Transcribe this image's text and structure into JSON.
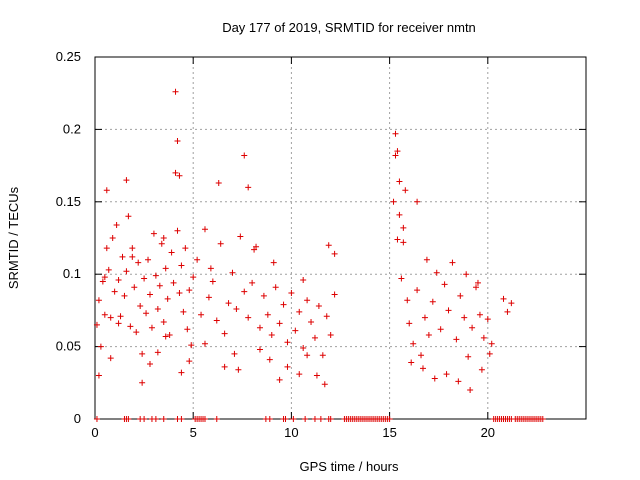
{
  "chart_data": {
    "type": "scatter",
    "title": "Day 177 of 2019, SRMTID for receiver nmtn",
    "xlabel": "GPS time / hours",
    "ylabel": "SRMTID / TECUs",
    "xlim": [
      0,
      25
    ],
    "ylim": [
      0,
      0.25
    ],
    "x_ticks": [
      0,
      5,
      10,
      15,
      20
    ],
    "y_ticks": [
      0,
      0.05,
      0.1,
      0.15,
      0.2,
      0.25
    ],
    "x_tick_labels": [
      "0",
      "5",
      "10",
      "15",
      "20"
    ],
    "y_tick_labels": [
      "0",
      "0.05",
      "0.1",
      "0.15",
      "0.2",
      "0.25"
    ],
    "grid": true,
    "marker": "+",
    "color": "#dd0000",
    "series": [
      {
        "name": "SRMTID",
        "x": [
          0.1,
          0.2,
          0.3,
          0.4,
          0.5,
          0.6,
          0.7,
          0.8,
          0.9,
          1.0,
          1.1,
          1.2,
          1.3,
          1.4,
          1.5,
          1.6,
          1.7,
          1.8,
          1.9,
          2.0,
          2.1,
          2.2,
          2.3,
          2.4,
          2.5,
          2.6,
          2.7,
          2.8,
          2.9,
          3.0,
          3.1,
          3.2,
          3.3,
          3.4,
          3.5,
          3.6,
          3.7,
          3.8,
          3.9,
          4.0,
          4.1,
          4.2,
          4.3,
          4.4,
          4.5,
          4.6,
          4.7,
          4.8,
          4.9,
          5.0,
          5.2,
          5.4,
          5.6,
          5.8,
          6.0,
          6.2,
          6.4,
          6.6,
          6.8,
          7.0,
          7.2,
          7.4,
          7.6,
          7.8,
          8.0,
          8.2,
          8.4,
          8.6,
          8.8,
          9.0,
          9.2,
          9.4,
          9.6,
          9.8,
          10.0,
          10.2,
          10.4,
          10.6,
          10.8,
          11.0,
          11.2,
          11.4,
          11.6,
          11.8,
          12.0,
          12.2,
          15.2,
          15.3,
          15.4,
          15.5,
          15.6,
          15.7,
          15.8,
          15.9,
          16.0,
          16.2,
          16.4,
          16.6,
          16.8,
          17.0,
          17.2,
          17.4,
          17.6,
          17.8,
          18.0,
          18.2,
          18.4,
          18.6,
          18.8,
          19.0,
          19.2,
          19.4,
          19.6,
          19.8,
          20.0,
          20.2,
          20.8,
          21.0,
          21.2,
          4.1,
          4.2,
          4.3,
          1.6,
          7.6,
          7.8,
          15.3,
          15.4,
          15.5,
          0.6,
          6.3,
          16.4,
          0.2,
          0.8,
          1.2,
          2.4,
          2.8,
          3.2,
          3.6,
          4.4,
          4.8,
          5.6,
          6.6,
          7.1,
          7.3,
          8.4,
          8.9,
          9.4,
          9.8,
          10.4,
          10.8,
          11.3,
          11.7,
          16.1,
          16.7,
          17.3,
          17.9,
          18.5,
          19.1,
          19.7,
          20.1,
          0.5,
          1.9,
          3.5,
          5.9,
          8.1,
          9.1,
          10.6,
          11.9,
          12.2,
          15.7,
          16.9,
          18.9,
          19.5
        ],
        "y": [
          0.065,
          0.082,
          0.05,
          0.095,
          0.072,
          0.118,
          0.103,
          0.07,
          0.125,
          0.088,
          0.134,
          0.096,
          0.071,
          0.112,
          0.085,
          0.102,
          0.14,
          0.064,
          0.118,
          0.091,
          0.06,
          0.108,
          0.078,
          0.045,
          0.097,
          0.073,
          0.11,
          0.086,
          0.063,
          0.128,
          0.099,
          0.076,
          0.092,
          0.121,
          0.067,
          0.104,
          0.083,
          0.058,
          0.115,
          0.094,
          0.17,
          0.13,
          0.087,
          0.106,
          0.074,
          0.118,
          0.062,
          0.089,
          0.051,
          0.098,
          0.11,
          0.072,
          0.131,
          0.084,
          0.095,
          0.068,
          0.121,
          0.059,
          0.08,
          0.101,
          0.076,
          0.126,
          0.088,
          0.07,
          0.094,
          0.119,
          0.063,
          0.085,
          0.072,
          0.058,
          0.091,
          0.066,
          0.079,
          0.053,
          0.087,
          0.061,
          0.074,
          0.049,
          0.082,
          0.067,
          0.056,
          0.078,
          0.044,
          0.071,
          0.058,
          0.086,
          0.15,
          0.182,
          0.124,
          0.141,
          0.097,
          0.122,
          0.158,
          0.082,
          0.066,
          0.052,
          0.089,
          0.044,
          0.07,
          0.058,
          0.081,
          0.101,
          0.062,
          0.093,
          0.075,
          0.108,
          0.055,
          0.085,
          0.07,
          0.043,
          0.063,
          0.091,
          0.072,
          0.056,
          0.069,
          0.052,
          0.083,
          0.074,
          0.08,
          0.226,
          0.192,
          0.168,
          0.165,
          0.182,
          0.16,
          0.197,
          0.185,
          0.164,
          0.158,
          0.163,
          0.15,
          0.03,
          0.042,
          0.066,
          0.025,
          0.038,
          0.046,
          0.057,
          0.032,
          0.04,
          0.052,
          0.036,
          0.045,
          0.034,
          0.048,
          0.041,
          0.027,
          0.036,
          0.031,
          0.044,
          0.03,
          0.024,
          0.039,
          0.035,
          0.028,
          0.031,
          0.026,
          0.02,
          0.034,
          0.045,
          0.098,
          0.112,
          0.125,
          0.104,
          0.117,
          0.108,
          0.096,
          0.12,
          0.114,
          0.132,
          0.11,
          0.1,
          0.094
        ],
        "zero_x": [
          0.1,
          1.5,
          1.6,
          1.7,
          2.3,
          2.5,
          2.9,
          3.1,
          3.5,
          4.2,
          4.4,
          5.1,
          5.2,
          5.3,
          5.4,
          5.5,
          5.6,
          6.2,
          8.7,
          8.9,
          9.6,
          9.7,
          10.1,
          10.7,
          11.2,
          11.5,
          11.9,
          12.0,
          12.7,
          12.8,
          12.9,
          13.0,
          13.1,
          13.2,
          13.3,
          13.4,
          13.5,
          13.6,
          13.7,
          13.8,
          13.9,
          14.0,
          14.1,
          14.2,
          14.3,
          14.4,
          14.5,
          14.6,
          14.7,
          14.8,
          14.9,
          15.0,
          20.3,
          20.4,
          20.5,
          20.6,
          20.7,
          20.8,
          20.9,
          21.0,
          21.1,
          21.2,
          21.4,
          21.5,
          21.6,
          21.7,
          21.8,
          21.9,
          22.0,
          22.1,
          22.2,
          22.3,
          22.4,
          22.5,
          22.6,
          22.7,
          22.8
        ]
      }
    ]
  }
}
